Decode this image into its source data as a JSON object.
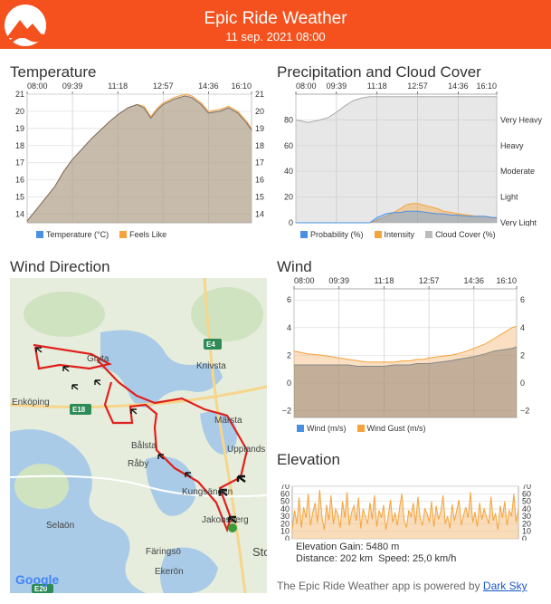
{
  "header": {
    "title": "Epic Ride Weather",
    "subtitle": "11 sep. 2021 08:00",
    "accent": "#f4511e"
  },
  "sections": {
    "temperature": "Temperature",
    "precipitation": "Precipitation and Cloud Cover",
    "wind_direction": "Wind Direction",
    "wind": "Wind",
    "elevation": "Elevation"
  },
  "time_ticks": [
    "08:00",
    "09:39",
    "11:18",
    "12:57",
    "14:36",
    "16:10"
  ],
  "chart_data": [
    {
      "type": "area",
      "name": "temperature",
      "x": [
        "08:00",
        "08:30",
        "09:00",
        "09:20",
        "09:39",
        "10:00",
        "10:20",
        "10:40",
        "11:00",
        "11:18",
        "11:40",
        "12:00",
        "12:15",
        "12:30",
        "12:45",
        "12:57",
        "13:20",
        "13:45",
        "14:00",
        "14:20",
        "14:36",
        "15:00",
        "15:20",
        "15:40",
        "16:00",
        "16:10"
      ],
      "series": [
        {
          "name": "Temperature (°C)",
          "color": "#4a90e2",
          "values": [
            13.6,
            14.6,
            15.6,
            16.5,
            17.2,
            17.8,
            18.4,
            18.9,
            19.4,
            19.8,
            20.2,
            20.4,
            20.2,
            19.6,
            20.1,
            20.4,
            20.7,
            20.9,
            20.8,
            20.4,
            19.9,
            20.0,
            20.2,
            19.9,
            19.3,
            18.9
          ]
        },
        {
          "name": "Feels Like",
          "color": "#f5a33a",
          "values": [
            13.6,
            14.6,
            15.6,
            16.5,
            17.2,
            17.8,
            18.4,
            18.9,
            19.4,
            19.8,
            20.2,
            20.4,
            20.3,
            19.7,
            20.2,
            20.5,
            20.8,
            21.0,
            20.9,
            20.5,
            20.0,
            20.1,
            20.3,
            20.0,
            19.4,
            19.0
          ]
        }
      ],
      "ylim": [
        13.5,
        21
      ],
      "y_ticks_left": [
        "21",
        "20",
        "19",
        "18",
        "17",
        "16",
        "15",
        "14"
      ],
      "y_ticks_right": [
        "21",
        "20",
        "19",
        "18",
        "17",
        "16",
        "15",
        "14"
      ],
      "legend": "bottom-center",
      "grid": true
    },
    {
      "type": "area",
      "name": "precipitation",
      "x": [
        "08:00",
        "08:30",
        "09:00",
        "09:20",
        "09:39",
        "10:00",
        "10:20",
        "10:40",
        "11:00",
        "11:18",
        "11:40",
        "12:00",
        "12:15",
        "12:30",
        "12:45",
        "12:57",
        "13:20",
        "13:45",
        "14:00",
        "14:20",
        "14:36",
        "15:00",
        "15:20",
        "15:40",
        "16:00",
        "16:10"
      ],
      "series": [
        {
          "name": "Probability (%)",
          "color": "#4a90e2",
          "values": [
            0,
            0,
            0,
            0,
            0,
            0,
            0,
            0,
            0,
            4,
            7,
            8,
            8,
            9,
            9,
            9,
            8,
            7,
            7,
            6,
            6,
            5,
            5,
            5,
            4,
            4
          ]
        },
        {
          "name": "Intensity",
          "color": "#f5a33a",
          "values": [
            0,
            0,
            0,
            0,
            0,
            0,
            0,
            0,
            0,
            2,
            5,
            8,
            11,
            14,
            15,
            15,
            13,
            11,
            9,
            8,
            7,
            6,
            5,
            5,
            4,
            4
          ]
        },
        {
          "name": "Cloud Cover (%)",
          "color": "#bbbbbb",
          "values": [
            80,
            78,
            80,
            82,
            86,
            91,
            95,
            97,
            98,
            98,
            98,
            98,
            98,
            98,
            98,
            98,
            98,
            98,
            98,
            98,
            98,
            98,
            98,
            98,
            98,
            98
          ]
        }
      ],
      "ylim": [
        0,
        100
      ],
      "y_ticks_left": [
        "80",
        "60",
        "40",
        "20",
        "0"
      ],
      "y_ticks_right": [
        "Very Heavy",
        "Heavy",
        "Moderate",
        "Light",
        "Very Light"
      ],
      "legend": "bottom-center",
      "grid": true
    },
    {
      "type": "area",
      "name": "wind",
      "x": [
        "08:00",
        "08:30",
        "09:00",
        "09:20",
        "09:39",
        "10:00",
        "10:20",
        "10:40",
        "11:00",
        "11:18",
        "11:40",
        "12:00",
        "12:15",
        "12:30",
        "12:45",
        "12:57",
        "13:20",
        "13:45",
        "14:00",
        "14:20",
        "14:36",
        "15:00",
        "15:20",
        "15:40",
        "16:00",
        "16:10"
      ],
      "series": [
        {
          "name": "Wind (m/s)",
          "color": "#4a90e2",
          "values": [
            1.3,
            1.3,
            1.3,
            1.3,
            1.3,
            1.3,
            1.2,
            1.2,
            1.2,
            1.2,
            1.3,
            1.3,
            1.3,
            1.4,
            1.4,
            1.4,
            1.5,
            1.6,
            1.7,
            1.8,
            1.9,
            2.1,
            2.3,
            2.4,
            2.5,
            2.6
          ]
        },
        {
          "name": "Wind Gust (m/s)",
          "color": "#f5a33a",
          "values": [
            2.3,
            2.1,
            2.0,
            1.9,
            1.8,
            1.7,
            1.6,
            1.5,
            1.5,
            1.5,
            1.5,
            1.6,
            1.6,
            1.7,
            1.7,
            1.8,
            1.9,
            2.0,
            2.1,
            2.3,
            2.5,
            2.8,
            3.2,
            3.6,
            4.0,
            4.1
          ]
        }
      ],
      "ylim": [
        -2.5,
        6.8
      ],
      "y_ticks_left": [
        "6",
        "4",
        "2",
        "0",
        "−2"
      ],
      "y_ticks_right": [
        "6",
        "4",
        "2",
        "0",
        "−2"
      ],
      "legend": "bottom-center",
      "grid": true
    },
    {
      "type": "area",
      "name": "elevation",
      "series": [
        {
          "name": "Elevation",
          "color": "#f5a33a",
          "values": [
            12,
            38,
            20,
            55,
            15,
            42,
            28,
            60,
            18,
            35,
            48,
            22,
            65,
            30,
            12,
            45,
            25,
            58,
            20,
            40,
            32,
            15,
            50,
            28,
            62,
            18,
            36,
            44,
            24,
            55,
            14,
            40,
            30,
            20,
            48,
            26,
            58,
            16,
            38,
            28,
            45,
            12,
            30,
            52,
            22,
            35,
            18,
            42,
            60,
            25,
            15,
            38,
            30,
            48,
            20,
            56,
            28,
            18,
            40,
            34,
            22,
            50,
            16,
            44,
            26,
            36,
            58,
            20,
            30,
            14,
            46,
            24,
            38,
            52,
            18,
            32,
            42,
            28,
            62,
            22,
            36,
            16,
            48,
            26,
            40,
            30,
            20,
            56,
            24,
            34,
            12,
            44,
            28,
            50,
            18,
            38,
            30,
            60,
            22,
            40
          ]
        }
      ],
      "ylim": [
        0,
        70
      ],
      "y_ticks_left": [
        "70",
        "60",
        "50",
        "40",
        "30",
        "20",
        "10",
        "0"
      ],
      "y_ticks_right": [
        "70",
        "60",
        "50",
        "40",
        "30",
        "20",
        "10",
        "0"
      ],
      "grid": true
    }
  ],
  "legends": {
    "temperature": [
      {
        "label": "Temperature (°C)",
        "color": "#4a90e2"
      },
      {
        "label": "Feels Like",
        "color": "#f5a33a"
      }
    ],
    "precipitation": [
      {
        "label": "Probability (%)",
        "color": "#4a90e2"
      },
      {
        "label": "Intensity",
        "color": "#f5a33a"
      },
      {
        "label": "Cloud Cover (%)",
        "color": "#bbbbbb"
      }
    ],
    "wind": [
      {
        "label": "Wind (m/s)",
        "color": "#4a90e2"
      },
      {
        "label": "Wind Gust (m/s)",
        "color": "#f5a33a"
      }
    ]
  },
  "map": {
    "places": [
      "Gryta",
      "Knivsta",
      "Enköping",
      "Märsta",
      "Bålsta",
      "Upplands Väsby",
      "Råby",
      "Kungsängen",
      "Jakobsberg",
      "Selaön",
      "Färingsö",
      "Ekerön",
      "Sto"
    ],
    "roads": [
      "E4",
      "E18",
      "E20"
    ],
    "logo": "Google",
    "route_color": "#e0201c"
  },
  "elevation": {
    "gain": "Elevation Gain: 5480 m",
    "distance": "Distance: 202 km",
    "speed": "Speed: 25,0 km/h"
  },
  "footer": {
    "text": "The Epic Ride Weather app is powered by",
    "link": "Dark Sky"
  }
}
